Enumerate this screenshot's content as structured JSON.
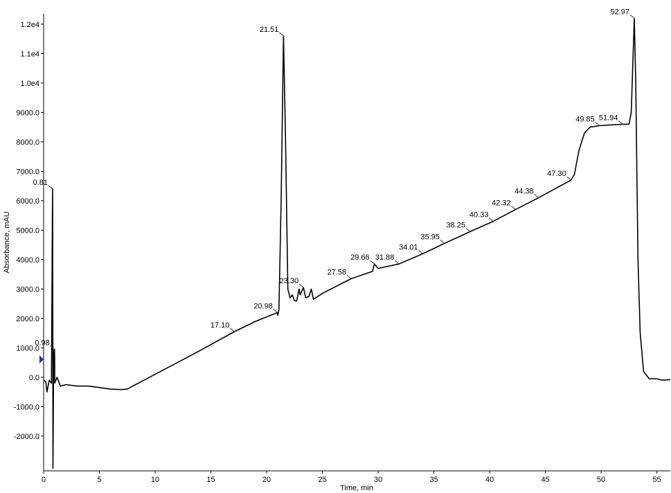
{
  "chart_data": {
    "type": "line",
    "x_label": "Time, min",
    "y_label": "Absorbance, mAU",
    "color": "#000000",
    "xlim": [
      0,
      56.2
    ],
    "ylim": [
      -3180,
      12350
    ],
    "xticks": [
      0,
      5,
      10,
      15,
      20,
      25,
      30,
      35,
      40,
      45,
      50,
      55
    ],
    "yticks": [
      {
        "value": 12000,
        "label": "1.2e4"
      },
      {
        "value": 11000,
        "label": "1.1e4"
      },
      {
        "value": 10000,
        "label": "1.0e4"
      },
      {
        "value": 9000,
        "label": "9000.0"
      },
      {
        "value": 8000,
        "label": "8000.0"
      },
      {
        "value": 7000,
        "label": "7000.0"
      },
      {
        "value": 6000,
        "label": "6000.0"
      },
      {
        "value": 5000,
        "label": "5000.0"
      },
      {
        "value": 4000,
        "label": "4000.0"
      },
      {
        "value": 3000,
        "label": "3000.0"
      },
      {
        "value": 2000,
        "label": "2000.0"
      },
      {
        "value": 1000,
        "label": "1000.0"
      },
      {
        "value": 0,
        "label": "0.0"
      },
      {
        "value": -1000,
        "label": "-1000.0"
      },
      {
        "value": -2000,
        "label": "-2000.0"
      }
    ],
    "x": [
      0,
      0.2,
      0.3,
      0.5,
      0.7,
      0.78,
      0.81,
      0.84,
      0.9,
      0.98,
      1.0,
      1.2,
      1.5,
      2,
      3,
      4,
      5,
      6,
      7,
      7.5,
      8,
      10,
      12,
      14,
      17.1,
      19,
      20.98,
      21.0,
      21.1,
      21.3,
      21.51,
      21.7,
      21.9,
      22.1,
      22.3,
      22.5,
      22.7,
      22.9,
      23.0,
      23.3,
      23.5,
      23.8,
      24.0,
      24.2,
      25,
      27.58,
      29.5,
      29.66,
      30.0,
      31.88,
      34.01,
      35.95,
      38.25,
      40.33,
      42.32,
      44.38,
      47.3,
      47.6,
      48,
      48.5,
      49.0,
      49.85,
      51.94,
      52.5,
      52.7,
      52.97,
      53.1,
      53.3,
      53.5,
      53.8,
      54.3,
      55,
      55.5,
      56.2
    ],
    "series": [
      {
        "values": [
          -100,
          -150,
          -500,
          -100,
          -200,
          5300,
          6400,
          -3100,
          900,
          950,
          -200,
          0,
          -300,
          -250,
          -300,
          -300,
          -350,
          -400,
          -420,
          -400,
          -300,
          100,
          500,
          900,
          1550,
          1900,
          2200,
          2100,
          2300,
          6000,
          11600,
          8000,
          3000,
          2700,
          2800,
          2600,
          2600,
          3000,
          2800,
          3050,
          2700,
          2750,
          3000,
          2650,
          2850,
          3350,
          3600,
          3850,
          3700,
          3850,
          4200,
          4550,
          4950,
          5300,
          5700,
          6100,
          6700,
          6900,
          7700,
          8300,
          8500,
          8550,
          8600,
          8600,
          9000,
          12200,
          10000,
          4000,
          1500,
          200,
          -50,
          -50,
          -100,
          -80
        ]
      }
    ],
    "annotations": [
      {
        "label": "0.81",
        "x": 0.81,
        "y": 6400
      },
      {
        "label": "0.98",
        "x": 0.98,
        "y": 950
      },
      {
        "label": "17.10",
        "x": 17.1,
        "y": 1550
      },
      {
        "label": "20.98",
        "x": 20.98,
        "y": 2200
      },
      {
        "label": "21.51",
        "x": 21.51,
        "y": 11600
      },
      {
        "label": "23.30",
        "x": 23.3,
        "y": 3050
      },
      {
        "label": "27.58",
        "x": 27.58,
        "y": 3350
      },
      {
        "label": "29.66",
        "x": 29.66,
        "y": 3850
      },
      {
        "label": "31.88",
        "x": 31.88,
        "y": 3850
      },
      {
        "label": "34.01",
        "x": 34.01,
        "y": 4200
      },
      {
        "label": "35.95",
        "x": 35.95,
        "y": 4550
      },
      {
        "label": "38.25",
        "x": 38.25,
        "y": 4950
      },
      {
        "label": "40.33",
        "x": 40.33,
        "y": 5300
      },
      {
        "label": "42.32",
        "x": 42.32,
        "y": 5700
      },
      {
        "label": "44.38",
        "x": 44.38,
        "y": 6100
      },
      {
        "label": "47.30",
        "x": 47.3,
        "y": 6700
      },
      {
        "label": "49.85",
        "x": 49.85,
        "y": 8550
      },
      {
        "label": "51.94",
        "x": 51.94,
        "y": 8600
      },
      {
        "label": "52.97",
        "x": 52.97,
        "y": 12200
      }
    ]
  }
}
